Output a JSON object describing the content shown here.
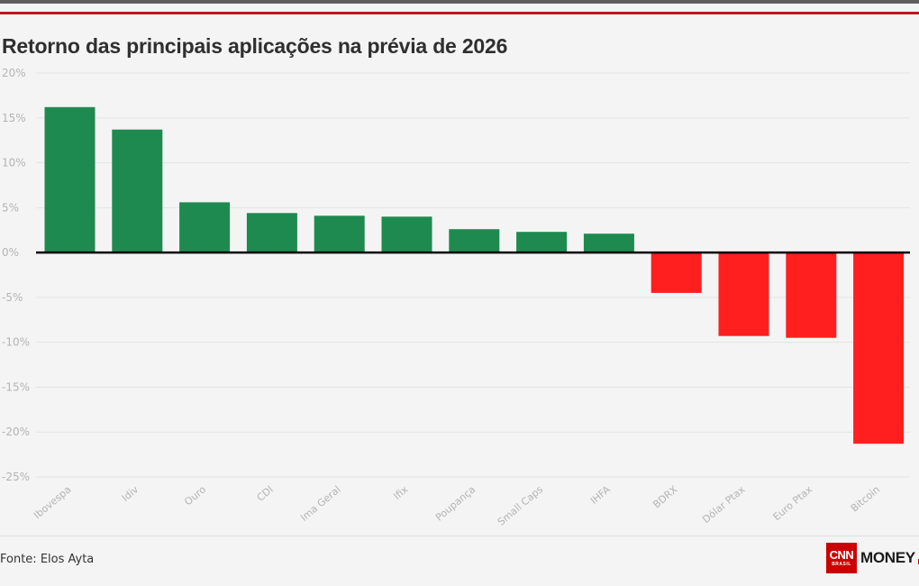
{
  "title": "Retorno das principais aplicações na prévia de 2026",
  "source": "Fonte: Elos Ayta",
  "logo": {
    "mark": "CNN",
    "sub": "BRASIL",
    "word": "MONEY"
  },
  "colors": {
    "positive": "#1e8a4f",
    "negative": "#ff1f1f",
    "zero_line": "#000000",
    "grid": "#e4e4e4"
  },
  "chart_data": {
    "type": "bar",
    "title": "Retorno das principais aplicações na prévia de 2026",
    "categories": [
      "Ibovespa",
      "Idiv",
      "Ouro",
      "CDI",
      "Ima Geral",
      "Ifix",
      "Poupança",
      "Small Caps",
      "IHFA",
      "BDRX",
      "Dólar Ptax",
      "Euro Ptax",
      "Bitcoin"
    ],
    "values": [
      16.2,
      13.7,
      5.6,
      4.4,
      4.1,
      4.0,
      2.6,
      2.3,
      2.1,
      -4.5,
      -9.3,
      -9.5,
      -21.3
    ],
    "ylim": [
      -25,
      20
    ],
    "yticks": [
      20,
      15,
      10,
      5,
      0,
      -5,
      -10,
      -15,
      -20,
      -25
    ],
    "ytick_labels": [
      "20%",
      "15%",
      "10%",
      "5%",
      "0%",
      "-5%",
      "-10%",
      "-15%",
      "-20%",
      "-25%"
    ],
    "xlabel": "",
    "ylabel": "",
    "grid": true,
    "legend": "none"
  }
}
